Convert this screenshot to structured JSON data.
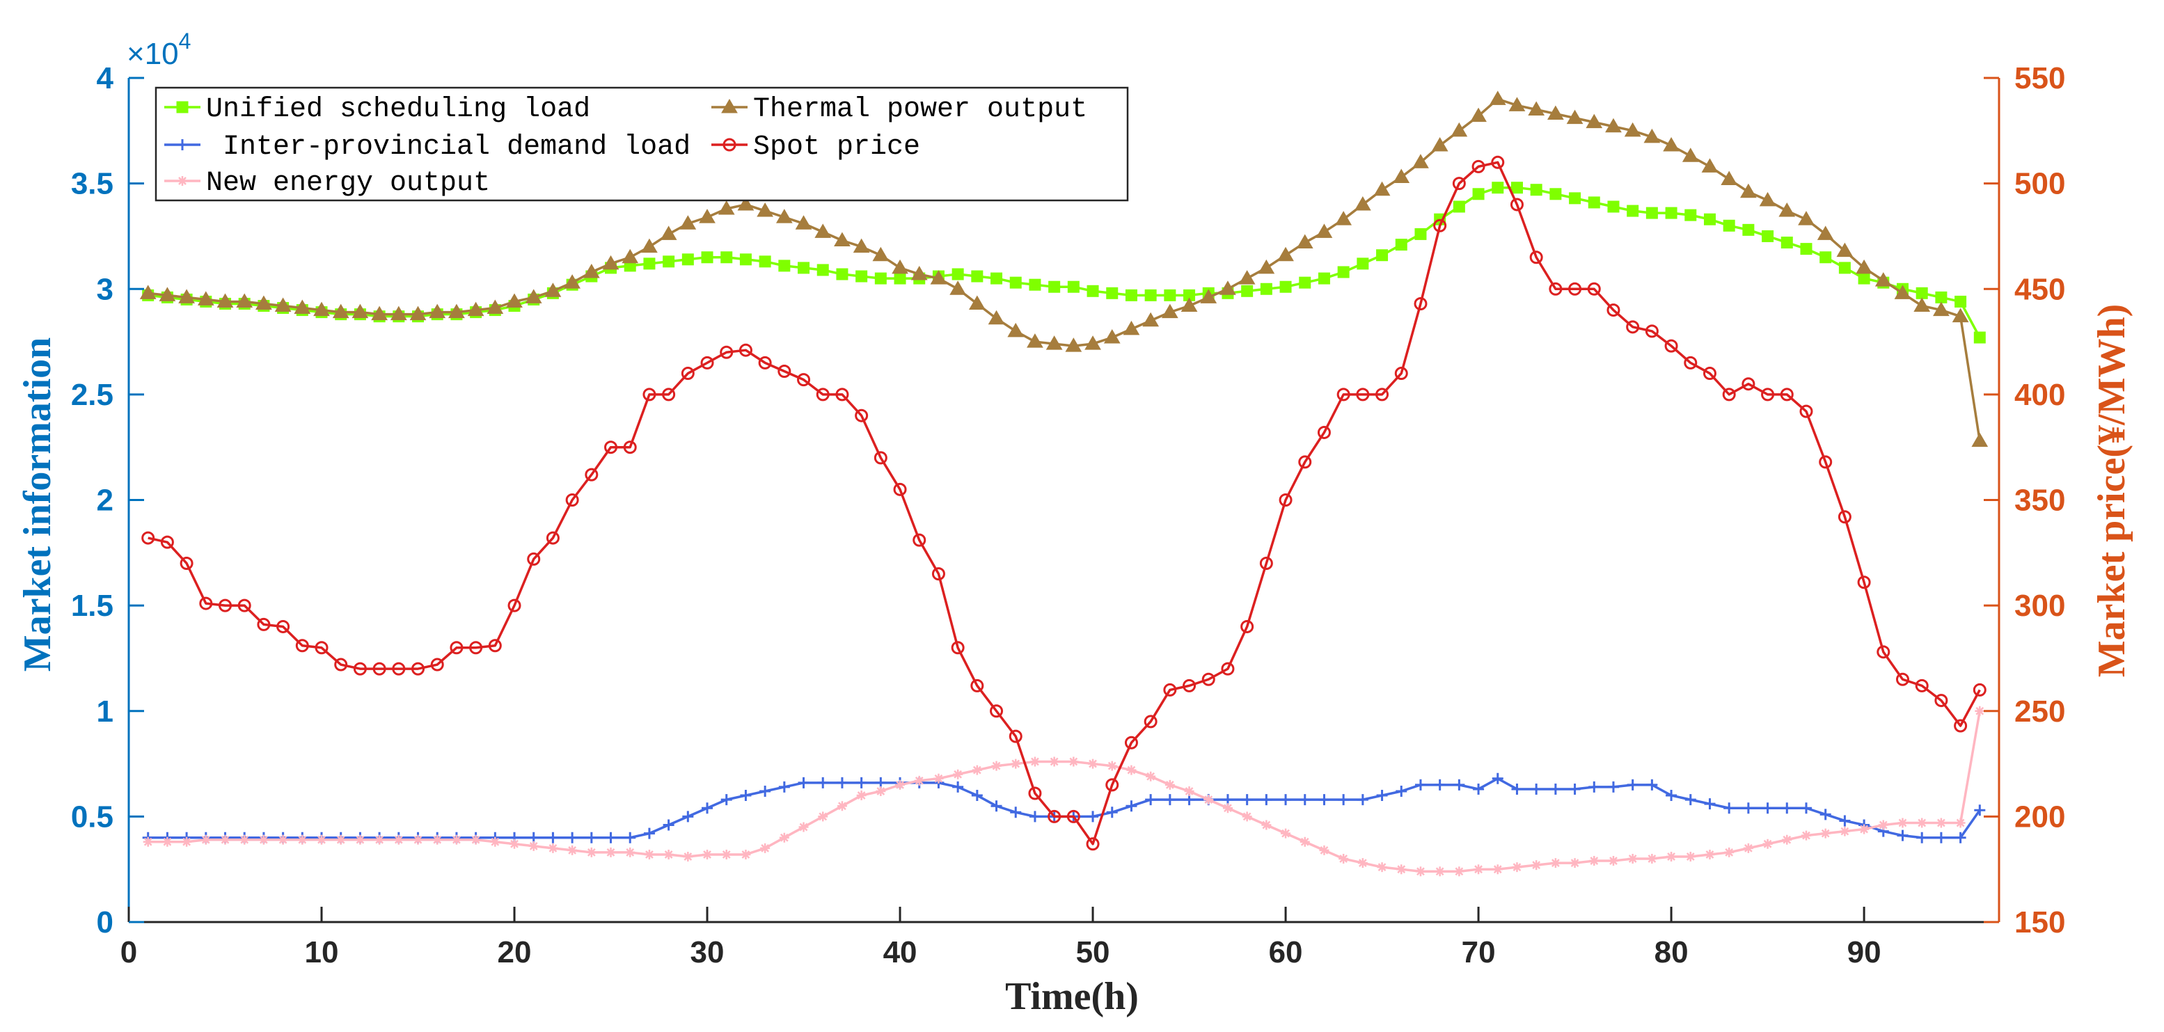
{
  "chart_data": {
    "type": "line",
    "xlabel": "Time(h)",
    "ylabel_left": "Market information",
    "ylabel_right": "Market price(¥/MWh)",
    "left_exponent_label": "×10",
    "left_exponent_power": "4",
    "x_ticks": [
      "0",
      "10",
      "20",
      "30",
      "40",
      "50",
      "60",
      "70",
      "80",
      "90"
    ],
    "left_ticks": [
      "0",
      "0.5",
      "1",
      "1.5",
      "2",
      "2.5",
      "3",
      "3.5",
      "4"
    ],
    "right_ticks": [
      "150",
      "200",
      "250",
      "300",
      "350",
      "400",
      "450",
      "500",
      "550"
    ],
    "xlim": [
      0,
      97
    ],
    "ylim_left": [
      0,
      40000
    ],
    "ylim_right": [
      150,
      550
    ],
    "x": [
      1,
      2,
      3,
      4,
      5,
      6,
      7,
      8,
      9,
      10,
      11,
      12,
      13,
      14,
      15,
      16,
      17,
      18,
      19,
      20,
      21,
      22,
      23,
      24,
      25,
      26,
      27,
      28,
      29,
      30,
      31,
      32,
      33,
      34,
      35,
      36,
      37,
      38,
      39,
      40,
      41,
      42,
      43,
      44,
      45,
      46,
      47,
      48,
      49,
      50,
      51,
      52,
      53,
      54,
      55,
      56,
      57,
      58,
      59,
      60,
      61,
      62,
      63,
      64,
      65,
      66,
      67,
      68,
      69,
      70,
      71,
      72,
      73,
      74,
      75,
      76,
      77,
      78,
      79,
      80,
      81,
      82,
      83,
      84,
      85,
      86,
      87,
      88,
      89,
      90,
      91,
      92,
      93,
      94,
      95,
      96
    ],
    "series": [
      {
        "name": "Unified scheduling load",
        "axis": "left",
        "color": "#7FFF00",
        "marker": "square",
        "values": [
          29700,
          29600,
          29500,
          29400,
          29300,
          29300,
          29200,
          29100,
          29000,
          28900,
          28800,
          28800,
          28700,
          28700,
          28700,
          28800,
          28800,
          28900,
          29000,
          29200,
          29500,
          29800,
          30200,
          30600,
          31000,
          31100,
          31200,
          31300,
          31400,
          31500,
          31500,
          31400,
          31300,
          31100,
          31000,
          30900,
          30700,
          30600,
          30500,
          30500,
          30500,
          30600,
          30700,
          30600,
          30500,
          30300,
          30200,
          30100,
          30100,
          29900,
          29800,
          29700,
          29700,
          29700,
          29700,
          29800,
          29800,
          29900,
          30000,
          30100,
          30300,
          30500,
          30800,
          31200,
          31600,
          32100,
          32600,
          33300,
          33900,
          34500,
          34800,
          34800,
          34700,
          34500,
          34300,
          34100,
          33900,
          33700,
          33600,
          33600,
          33500,
          33300,
          33000,
          32800,
          32500,
          32200,
          31900,
          31500,
          31000,
          30500,
          30300,
          30000,
          29800,
          29600,
          29400,
          27700
        ]
      },
      {
        "name": "Inter-provincial demand load",
        "axis": "left",
        "color": "#4169E1",
        "marker": "plus",
        "values": [
          4000,
          4000,
          4000,
          4000,
          4000,
          4000,
          4000,
          4000,
          4000,
          4000,
          4000,
          4000,
          4000,
          4000,
          4000,
          4000,
          4000,
          4000,
          4000,
          4000,
          4000,
          4000,
          4000,
          4000,
          4000,
          4000,
          4200,
          4600,
          5000,
          5400,
          5800,
          6000,
          6200,
          6400,
          6600,
          6600,
          6600,
          6600,
          6600,
          6600,
          6600,
          6600,
          6400,
          6000,
          5500,
          5200,
          5000,
          5000,
          5000,
          5000,
          5200,
          5500,
          5800,
          5800,
          5800,
          5800,
          5800,
          5800,
          5800,
          5800,
          5800,
          5800,
          5800,
          5800,
          6000,
          6200,
          6500,
          6500,
          6500,
          6300,
          6800,
          6300,
          6300,
          6300,
          6300,
          6400,
          6400,
          6500,
          6500,
          6000,
          5800,
          5600,
          5400,
          5400,
          5400,
          5400,
          5400,
          5100,
          4800,
          4600,
          4300,
          4100,
          4000,
          4000,
          4000,
          5300
        ]
      },
      {
        "name": "New energy output",
        "axis": "left",
        "color": "#FFB6C1",
        "marker": "star",
        "values": [
          3800,
          3800,
          3800,
          3900,
          3900,
          3900,
          3900,
          3900,
          3900,
          3900,
          3900,
          3900,
          3900,
          3900,
          3900,
          3900,
          3900,
          3900,
          3800,
          3700,
          3600,
          3500,
          3400,
          3300,
          3300,
          3300,
          3200,
          3200,
          3100,
          3200,
          3200,
          3200,
          3500,
          4000,
          4500,
          5000,
          5500,
          6000,
          6200,
          6500,
          6700,
          6800,
          7000,
          7200,
          7400,
          7500,
          7600,
          7600,
          7600,
          7500,
          7400,
          7200,
          6900,
          6500,
          6200,
          5800,
          5400,
          5000,
          4600,
          4200,
          3800,
          3400,
          3000,
          2800,
          2600,
          2500,
          2400,
          2400,
          2400,
          2500,
          2500,
          2600,
          2700,
          2800,
          2800,
          2900,
          2900,
          3000,
          3000,
          3100,
          3100,
          3200,
          3300,
          3500,
          3700,
          3900,
          4100,
          4200,
          4300,
          4400,
          4600,
          4700,
          4700,
          4700,
          4700,
          10000
        ]
      },
      {
        "name": "Thermal power output",
        "axis": "left",
        "color": "#A67D3D",
        "marker": "triangle",
        "values": [
          29800,
          29700,
          29600,
          29500,
          29400,
          29400,
          29300,
          29200,
          29100,
          29000,
          28900,
          28900,
          28800,
          28800,
          28800,
          28900,
          28900,
          29000,
          29100,
          29400,
          29600,
          29900,
          30300,
          30800,
          31200,
          31500,
          32000,
          32600,
          33100,
          33400,
          33800,
          34000,
          33700,
          33400,
          33100,
          32700,
          32300,
          32000,
          31600,
          31000,
          30700,
          30500,
          30000,
          29300,
          28600,
          28000,
          27500,
          27400,
          27300,
          27400,
          27700,
          28100,
          28500,
          28900,
          29200,
          29600,
          30000,
          30500,
          31000,
          31600,
          32200,
          32700,
          33300,
          34000,
          34700,
          35300,
          36000,
          36800,
          37500,
          38200,
          39000,
          38700,
          38500,
          38300,
          38100,
          37900,
          37700,
          37500,
          37200,
          36800,
          36300,
          35800,
          35200,
          34600,
          34200,
          33700,
          33300,
          32600,
          31800,
          31000,
          30400,
          29800,
          29200,
          29000,
          28700,
          22800
        ]
      },
      {
        "name": "Spot price",
        "axis": "right",
        "color": "#DC2020",
        "marker": "circle",
        "values": [
          332,
          330,
          320,
          301,
          300,
          300,
          291,
          290,
          281,
          280,
          272,
          270,
          270,
          270,
          270,
          272,
          280,
          280,
          281,
          300,
          322,
          332,
          350,
          362,
          375,
          375,
          400,
          400,
          410,
          415,
          420,
          421,
          415,
          411,
          407,
          400,
          400,
          390,
          370,
          355,
          331,
          315,
          280,
          262,
          250,
          238,
          211,
          200,
          200,
          187,
          215,
          235,
          245,
          260,
          262,
          265,
          270,
          290,
          320,
          350,
          368,
          382,
          400,
          400,
          400,
          410,
          443,
          480,
          500,
          508,
          510,
          490,
          465,
          450,
          450,
          450,
          440,
          432,
          430,
          423,
          415,
          410,
          400,
          405,
          400,
          400,
          392,
          368,
          342,
          311,
          278,
          265,
          262,
          255,
          243,
          260
        ]
      }
    ],
    "legend": {
      "location": "top-left",
      "columns": 2,
      "entries": [
        "Unified scheduling load",
        "Thermal power output",
        "Inter-provincial demand load",
        "Spot price",
        "New energy output"
      ]
    },
    "grid": false
  }
}
